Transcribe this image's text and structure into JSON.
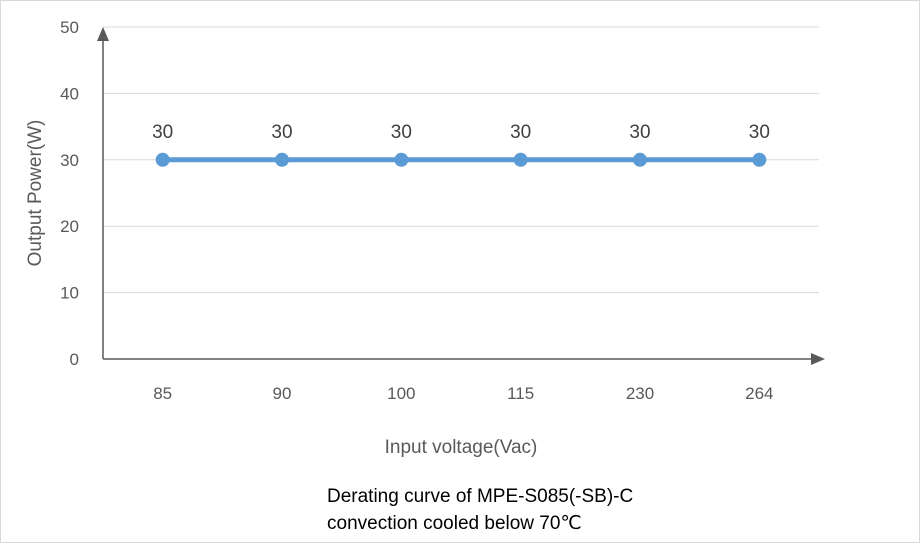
{
  "chart_data": {
    "type": "line",
    "categories": [
      "85",
      "90",
      "100",
      "115",
      "230",
      "264"
    ],
    "series": [
      {
        "values": [
          30,
          30,
          30,
          30,
          30,
          30
        ]
      }
    ],
    "xlabel": "Input voltage(Vac)",
    "ylabel": "Output Power(W)",
    "ylim": [
      0,
      50
    ],
    "yticks": [
      0,
      10,
      20,
      30,
      40,
      50
    ],
    "grid": true,
    "data_labels": true,
    "colors": {
      "series": "#5b9bd5",
      "grid": "#d9d9d9",
      "axis": "#595959"
    },
    "caption_lines": [
      "Derating curve of MPE-S085(-SB)-C",
      "convection cooled below 70℃"
    ]
  }
}
